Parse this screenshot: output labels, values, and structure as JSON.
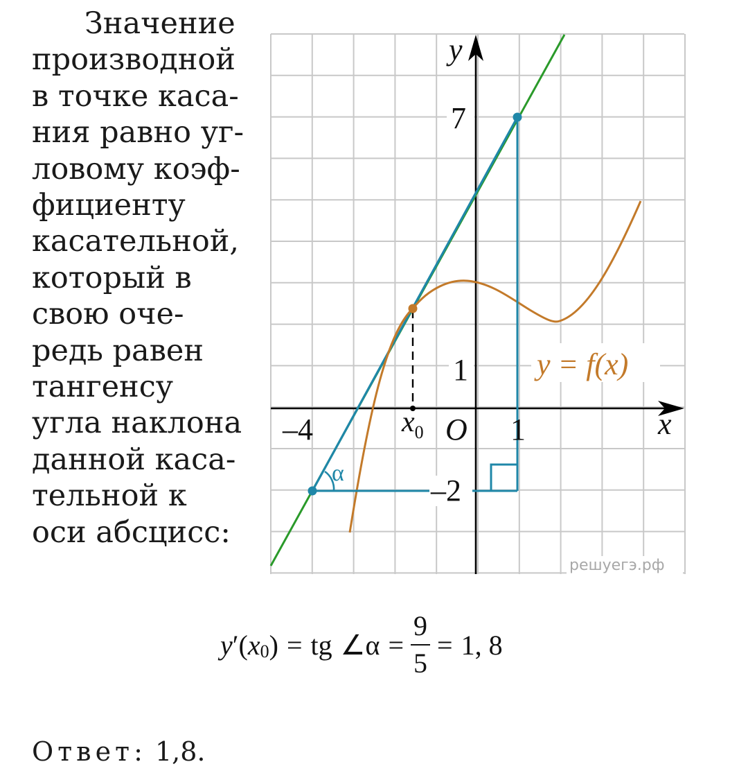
{
  "explanation_lines": [
    "Значение",
    "производной",
    "в точке каса-",
    "ния равно уг-",
    "ловому коэф-",
    "фициенту",
    "касательной,",
    "который в",
    "свою оче-",
    "редь равен",
    "тангенсу",
    "угла наклона",
    "данной каса-",
    "тельной к",
    "оси абсцисс:"
  ],
  "graph": {
    "x_axis_label": "x",
    "y_axis_label": "y",
    "origin_label": "O",
    "curve_label": "y = f(x)",
    "x0_label": "x",
    "x0_subscript": "0",
    "angle_label": "α",
    "x_tick_labels": {
      "neg4": "–4",
      "one": "1"
    },
    "y_tick_labels": {
      "seven": "7",
      "one": "1",
      "neg2": "–2"
    },
    "tangent_points": [
      {
        "x": -4,
        "y": -2
      },
      {
        "x": 1,
        "y": 7
      }
    ],
    "tangency_point": {
      "x": -1.6,
      "y": 2.4
    },
    "watermark": "решуегэ.рф",
    "colors": {
      "grid": "#c8c8c8",
      "axis": "#000000",
      "tangent": "#1f87a8",
      "tangent_ext": "#2a9a2a",
      "curve": "#c37a2a"
    }
  },
  "formula": {
    "lhs_y": "y",
    "prime": "′",
    "lparen": "(",
    "x": "x",
    "sub": "0",
    "rparen": ")",
    "eq1": "=",
    "tg": "tg",
    "angle_sym": "∠",
    "alpha": "α",
    "eq2": "=",
    "numerator": "9",
    "denominator": "5",
    "eq3": "=",
    "result": "1, 8"
  },
  "answer": {
    "label": "Ответ:",
    "value": "1,8."
  }
}
